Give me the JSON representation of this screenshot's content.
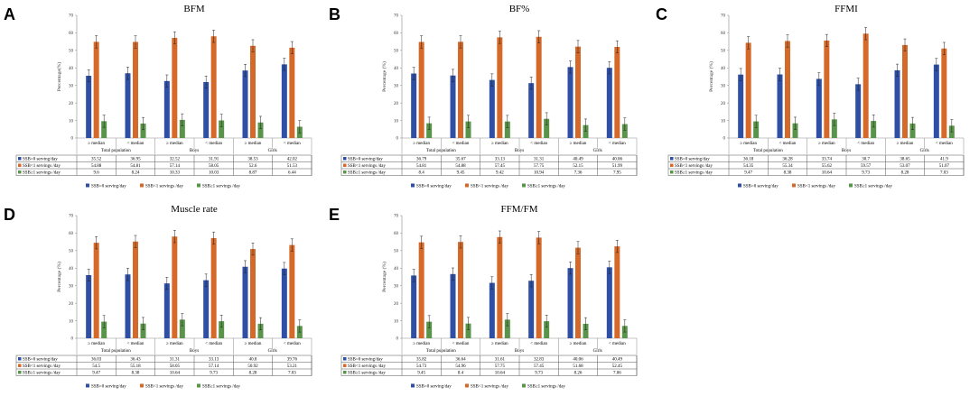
{
  "colors": {
    "ssb0": "#2e4fa3",
    "ssb_lt1": "#d5692a",
    "ssb_ge1": "#59944a",
    "axis": "#8a8a8a",
    "error_bar": "#222222"
  },
  "chart_data": [
    {
      "panel": "A",
      "type": "bar",
      "title": "BFM",
      "ylabel": "Percentage(%)",
      "ylim": [
        0,
        70
      ],
      "yticks": [
        "0",
        "10",
        "20",
        "30",
        "40",
        "50",
        "60",
        "70"
      ],
      "categories": [
        "≥ median",
        "< median",
        "≥ median",
        "< median",
        "≥ median",
        "< median"
      ],
      "groups": [
        "Total population",
        "Boys",
        "Girls"
      ],
      "series": [
        {
          "name": "SSB=0 serving/day",
          "values": [
            35.52,
            36.95,
            32.52,
            31.91,
            38.53,
            42.02
          ]
        },
        {
          "name": "SSB<1 servings /day",
          "values": [
            54.88,
            54.81,
            57.14,
            58.05,
            52.6,
            51.53
          ]
        },
        {
          "name": "SSB≥1 servings /day",
          "values": [
            9.6,
            8.24,
            10.33,
            10.03,
            8.87,
            6.44
          ]
        }
      ]
    },
    {
      "panel": "B",
      "type": "bar",
      "title": "BF%",
      "ylabel": "Percentage (%)",
      "ylim": [
        0,
        70
      ],
      "yticks": [
        "0",
        "10",
        "20",
        "30",
        "40",
        "50",
        "60",
        "70"
      ],
      "categories": [
        "≥ median",
        "< median",
        "≥ median",
        "< median",
        "≥ median",
        "< median"
      ],
      "groups": [
        "Total population",
        "Boys",
        "Girls"
      ],
      "series": [
        {
          "name": "SSB=0 serving/day",
          "values": [
            36.79,
            35.67,
            33.13,
            31.31,
            40.49,
            40.06
          ]
        },
        {
          "name": "SSB<1 servings /day",
          "values": [
            54.81,
            54.88,
            57.45,
            57.75,
            52.15,
            51.99
          ]
        },
        {
          "name": "SSB≥1 servings /day",
          "values": [
            8.4,
            9.45,
            9.42,
            10.94,
            7.36,
            7.95
          ]
        }
      ]
    },
    {
      "panel": "C",
      "type": "bar",
      "title": "FFMI",
      "ylabel": "Percentage (%)",
      "ylim": [
        0,
        70
      ],
      "yticks": [
        "0",
        "10",
        "20",
        "30",
        "40",
        "50",
        "60",
        "70"
      ],
      "categories": [
        "≥ median",
        "< median",
        "≥ median",
        "< median",
        "≥ median",
        "< median"
      ],
      "groups": [
        "Total population",
        "Boys",
        "Girls"
      ],
      "series": [
        {
          "name": "SSB=0 serving/day",
          "values": [
            36.18,
            36.28,
            33.74,
            30.7,
            38.65,
            41.9
          ]
        },
        {
          "name": "SSB<1 servings /day",
          "values": [
            54.35,
            55.34,
            55.62,
            59.57,
            53.07,
            51.07
          ]
        },
        {
          "name": "SSB≥1 servings /day",
          "values": [
            9.47,
            8.38,
            10.64,
            9.73,
            8.28,
            7.03
          ]
        }
      ]
    },
    {
      "panel": "D",
      "type": "bar",
      "title": "Muscle rate",
      "ylabel": "Percentage (%)",
      "ylim": [
        0,
        70
      ],
      "yticks": [
        "0",
        "10",
        "20",
        "30",
        "40",
        "50",
        "60",
        "70"
      ],
      "categories": [
        "≥ median",
        "< median",
        "≥ median",
        "< median",
        "≥ median",
        "< median"
      ],
      "groups": [
        "Total population",
        "Boys",
        "Girls"
      ],
      "series": [
        {
          "name": "SSB=0 serving/day",
          "values": [
            36.03,
            36.43,
            31.31,
            33.13,
            40.8,
            39.76
          ]
        },
        {
          "name": "SSB<1 servings /day",
          "values": [
            54.5,
            55.18,
            58.05,
            57.14,
            50.92,
            53.21
          ]
        },
        {
          "name": "SSB≥1 servings /day",
          "values": [
            9.47,
            8.38,
            10.64,
            9.73,
            8.28,
            7.03
          ]
        }
      ]
    },
    {
      "panel": "E",
      "type": "bar",
      "title": "FFM/FM",
      "ylabel": "Percentage (%)",
      "ylim": [
        0,
        70
      ],
      "yticks": [
        "0",
        "10",
        "20",
        "30",
        "40",
        "50",
        "60",
        "70"
      ],
      "categories": [
        "≥ median",
        "< median",
        "≥ median",
        "< median",
        "≥ median",
        "< median"
      ],
      "groups": [
        "Total population",
        "Boys",
        "Girls"
      ],
      "series": [
        {
          "name": "SSB=0 serving/day",
          "values": [
            35.82,
            36.64,
            31.61,
            32.83,
            40.06,
            40.49
          ]
        },
        {
          "name": "SSB<1 servings /day",
          "values": [
            54.73,
            54.96,
            57.75,
            57.45,
            51.68,
            52.45
          ]
        },
        {
          "name": "SSB≥1 servings /day",
          "values": [
            9.45,
            8.4,
            10.64,
            9.73,
            8.26,
            7.06
          ]
        }
      ]
    }
  ]
}
